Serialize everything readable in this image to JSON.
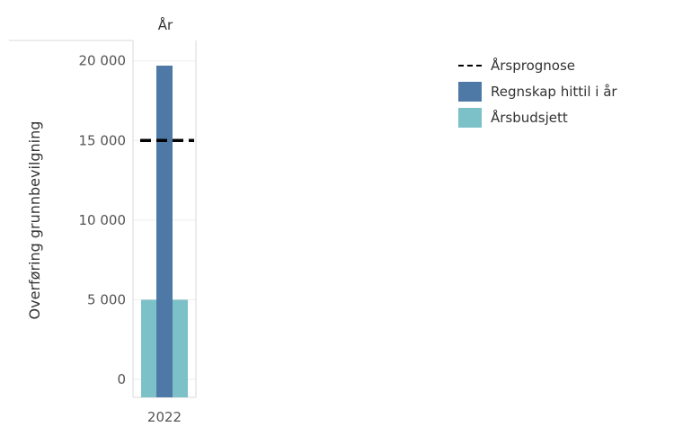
{
  "chart_data": {
    "type": "bar",
    "column_header": "År",
    "ylabel": "Overføring grunnbevilgning",
    "categories": [
      "2022"
    ],
    "ylim": [
      0,
      21000
    ],
    "yticks": [
      0,
      5000,
      10000,
      15000,
      20000
    ],
    "ytick_labels": [
      "0",
      "5 000",
      "10 000",
      "15 000",
      "20 000"
    ],
    "series": [
      {
        "name": "Årsbudsjett",
        "type": "bar",
        "values": [
          5000
        ],
        "color": "#7dc1c8"
      },
      {
        "name": "Regnskap hittil i år",
        "type": "bar",
        "values": [
          19700
        ],
        "color": "#4e79a7"
      },
      {
        "name": "Årsprognose",
        "type": "reference-line",
        "values": [
          15000
        ],
        "color": "#000000"
      }
    ],
    "legend": {
      "position": "right",
      "items": [
        {
          "label": "Årsprognose",
          "symbol": "dashed-line",
          "color": "#000000"
        },
        {
          "label": "Regnskap hittil i år",
          "symbol": "square",
          "color": "#4e79a7"
        },
        {
          "label": "Årsbudsjett",
          "symbol": "square",
          "color": "#7dc1c8"
        }
      ]
    },
    "grid": true
  }
}
